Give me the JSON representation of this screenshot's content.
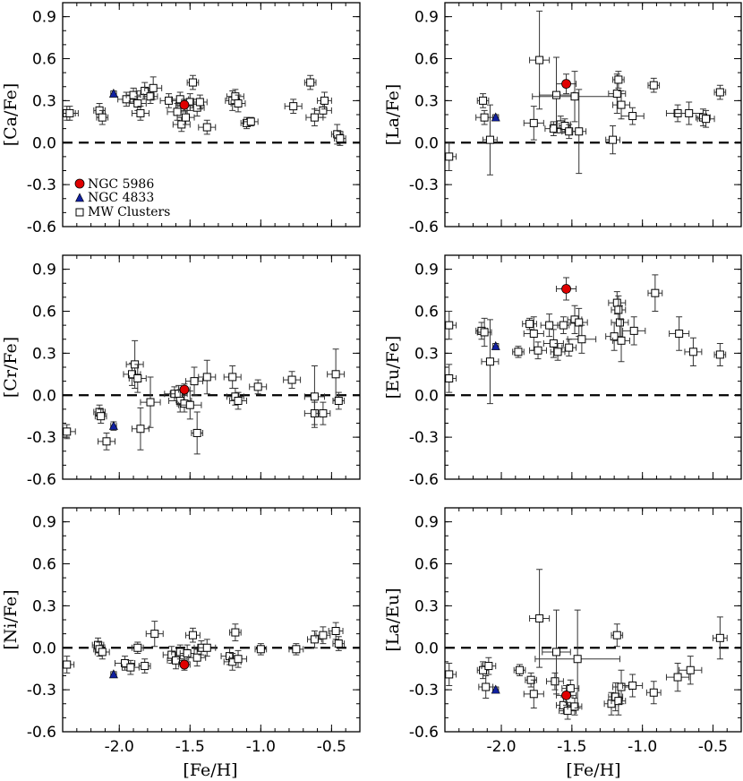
{
  "figure": {
    "xlabel": "[Fe/H]",
    "xticks": [
      "-2.0",
      "-1.5",
      "-1.0",
      "-0.5"
    ],
    "yticks": [
      "0.9",
      "0.6",
      "0.3",
      "0.0",
      "-0.3",
      "-0.6"
    ]
  },
  "legend": {
    "ngc5986": "NGC 5986",
    "ngc4833": "NGC 4833",
    "mw": "MW Clusters"
  },
  "colors": {
    "ngc5986": "#e00000",
    "ngc4833": "#1020a0"
  },
  "chart_data": [
    {
      "type": "scatter",
      "ylabel": "[Ca/Fe]",
      "xlim": [
        -2.4,
        -0.3
      ],
      "ylim": [
        -0.6,
        1.0
      ],
      "ngc5986": [
        -1.54,
        0.27,
        0.06,
        0.04
      ],
      "ngc4833": [
        -2.04,
        0.35,
        0.02,
        0.02
      ],
      "mw": [
        [
          -2.37,
          0.21,
          0.06,
          0.05
        ],
        [
          -2.35,
          0.21,
          0.06,
          0.05
        ],
        [
          -2.14,
          0.23,
          0.04,
          0.05
        ],
        [
          -2.12,
          0.18,
          0.04,
          0.05
        ],
        [
          -1.95,
          0.31,
          0.06,
          0.05
        ],
        [
          -1.9,
          0.34,
          0.05,
          0.05
        ],
        [
          -1.87,
          0.28,
          0.06,
          0.05
        ],
        [
          -1.85,
          0.21,
          0.06,
          0.05
        ],
        [
          -1.82,
          0.37,
          0.06,
          0.06
        ],
        [
          -1.78,
          0.33,
          0.05,
          0.05
        ],
        [
          -1.76,
          0.39,
          0.06,
          0.08
        ],
        [
          -1.65,
          0.3,
          0.06,
          0.05
        ],
        [
          -1.59,
          0.22,
          0.07,
          0.06
        ],
        [
          -1.57,
          0.31,
          0.06,
          0.05
        ],
        [
          -1.56,
          0.13,
          0.06,
          0.05
        ],
        [
          -1.53,
          0.18,
          0.06,
          0.05
        ],
        [
          -1.5,
          0.29,
          0.06,
          0.06
        ],
        [
          -1.48,
          0.43,
          0.04,
          0.05
        ],
        [
          -1.45,
          0.25,
          0.05,
          0.06
        ],
        [
          -1.43,
          0.29,
          0.05,
          0.05
        ],
        [
          -1.38,
          0.11,
          0.06,
          0.05
        ],
        [
          -1.2,
          0.3,
          0.05,
          0.07
        ],
        [
          -1.18,
          0.33,
          0.06,
          0.05
        ],
        [
          -1.16,
          0.28,
          0.05,
          0.06
        ],
        [
          -1.1,
          0.14,
          0.04,
          0.04
        ],
        [
          -1.07,
          0.15,
          0.05,
          0.03
        ],
        [
          -0.77,
          0.26,
          0.06,
          0.05
        ],
        [
          -0.65,
          0.43,
          0.04,
          0.05
        ],
        [
          -0.62,
          0.18,
          0.06,
          0.06
        ],
        [
          -0.56,
          0.23,
          0.06,
          0.05
        ],
        [
          -0.55,
          0.3,
          0.05,
          0.06
        ],
        [
          -0.46,
          0.06,
          0.04,
          0.07
        ],
        [
          -0.44,
          0.03,
          0.04,
          0.05
        ]
      ]
    },
    {
      "type": "scatter",
      "ylabel": "[La/Fe]",
      "xlim": [
        -2.4,
        -0.3
      ],
      "ylim": [
        -0.6,
        1.0
      ],
      "ngc5986": [
        -1.54,
        0.42,
        0.07,
        0.07
      ],
      "ngc4833": [
        -2.04,
        0.18,
        0.02,
        0.02
      ],
      "mw": [
        [
          -2.37,
          -0.1,
          0.05,
          0.1
        ],
        [
          -2.13,
          0.3,
          0.04,
          0.05
        ],
        [
          -2.12,
          0.18,
          0.06,
          0.05
        ],
        [
          -2.08,
          0.02,
          0.05,
          0.25
        ],
        [
          -1.77,
          0.14,
          0.07,
          0.12
        ],
        [
          -1.73,
          0.59,
          0.07,
          0.35
        ],
        [
          -1.63,
          0.1,
          0.06,
          0.05
        ],
        [
          -1.61,
          0.34,
          0.12,
          0.27
        ],
        [
          -1.58,
          0.13,
          0.07,
          0.06
        ],
        [
          -1.55,
          0.12,
          0.04,
          0.05
        ],
        [
          -1.52,
          0.08,
          0.05,
          0.05
        ],
        [
          -1.48,
          0.33,
          0.3,
          0.18
        ],
        [
          -1.45,
          0.08,
          0.05,
          0.3
        ],
        [
          -1.21,
          0.02,
          0.05,
          0.1
        ],
        [
          -1.18,
          0.35,
          0.06,
          0.14
        ],
        [
          -1.17,
          0.45,
          0.04,
          0.06
        ],
        [
          -1.15,
          0.27,
          0.06,
          0.1
        ],
        [
          -1.07,
          0.19,
          0.08,
          0.06
        ],
        [
          -0.92,
          0.41,
          0.04,
          0.05
        ],
        [
          -0.75,
          0.21,
          0.08,
          0.06
        ],
        [
          -0.67,
          0.21,
          0.1,
          0.08
        ],
        [
          -0.57,
          0.18,
          0.05,
          0.06
        ],
        [
          -0.55,
          0.17,
          0.06,
          0.06
        ],
        [
          -0.45,
          0.36,
          0.04,
          0.05
        ]
      ]
    },
    {
      "type": "scatter",
      "ylabel": "[Cr/Fe]",
      "xlim": [
        -2.4,
        -0.3
      ],
      "ylim": [
        -0.6,
        1.0
      ],
      "ngc5986": [
        -1.54,
        0.04,
        0.04,
        0.04
      ],
      "ngc4833": [
        -2.04,
        -0.22,
        0.02,
        0.03
      ],
      "mw": [
        [
          -2.37,
          -0.26,
          0.06,
          0.05
        ],
        [
          -2.14,
          -0.12,
          0.04,
          0.05
        ],
        [
          -2.13,
          -0.15,
          0.04,
          0.05
        ],
        [
          -2.09,
          -0.33,
          0.06,
          0.06
        ],
        [
          -1.91,
          0.15,
          0.06,
          0.08
        ],
        [
          -1.89,
          0.22,
          0.06,
          0.17
        ],
        [
          -1.87,
          0.12,
          0.06,
          0.1
        ],
        [
          -1.85,
          -0.24,
          0.06,
          0.15
        ],
        [
          -1.78,
          -0.05,
          0.07,
          0.18
        ],
        [
          -1.61,
          0.01,
          0.07,
          0.05
        ],
        [
          -1.58,
          0.01,
          0.06,
          0.06
        ],
        [
          -1.57,
          -0.04,
          0.08,
          0.08
        ],
        [
          -1.54,
          -0.06,
          0.05,
          0.06
        ],
        [
          -1.5,
          -0.07,
          0.08,
          0.1
        ],
        [
          -1.47,
          0.1,
          0.06,
          0.1
        ],
        [
          -1.45,
          -0.27,
          0.04,
          0.15
        ],
        [
          -1.38,
          0.13,
          0.06,
          0.12
        ],
        [
          -1.2,
          0.13,
          0.06,
          0.08
        ],
        [
          -1.18,
          -0.01,
          0.06,
          0.06
        ],
        [
          -1.16,
          -0.04,
          0.06,
          0.06
        ],
        [
          -1.02,
          0.06,
          0.06,
          0.05
        ],
        [
          -0.78,
          0.11,
          0.06,
          0.06
        ],
        [
          -0.62,
          -0.01,
          0.07,
          0.22
        ],
        [
          -0.62,
          -0.13,
          0.07,
          0.08
        ],
        [
          -0.56,
          -0.13,
          0.05,
          0.08
        ],
        [
          -0.47,
          0.15,
          0.06,
          0.18
        ],
        [
          -0.45,
          -0.04,
          0.04,
          0.06
        ]
      ]
    },
    {
      "type": "scatter",
      "ylabel": "[Eu/Fe]",
      "xlim": [
        -2.4,
        -0.3
      ],
      "ylim": [
        -0.6,
        1.0
      ],
      "ngc5986": [
        -1.54,
        0.76,
        0.07,
        0.08
      ],
      "ngc4833": [
        -2.04,
        0.35,
        0.02,
        0.02
      ],
      "mw": [
        [
          -2.37,
          0.5,
          0.05,
          0.1
        ],
        [
          -2.37,
          0.12,
          0.05,
          0.1
        ],
        [
          -2.14,
          0.46,
          0.04,
          0.06
        ],
        [
          -2.12,
          0.45,
          0.05,
          0.1
        ],
        [
          -2.08,
          0.24,
          0.06,
          0.3
        ],
        [
          -1.88,
          0.31,
          0.04,
          0.04
        ],
        [
          -1.8,
          0.51,
          0.05,
          0.04
        ],
        [
          -1.77,
          0.44,
          0.07,
          0.12
        ],
        [
          -1.74,
          0.32,
          0.06,
          0.06
        ],
        [
          -1.66,
          0.5,
          0.06,
          0.08
        ],
        [
          -1.63,
          0.37,
          0.07,
          0.1
        ],
        [
          -1.6,
          0.31,
          0.05,
          0.06
        ],
        [
          -1.56,
          0.5,
          0.04,
          0.06
        ],
        [
          -1.52,
          0.34,
          0.05,
          0.06
        ],
        [
          -1.48,
          0.54,
          0.05,
          0.1
        ],
        [
          -1.45,
          0.52,
          0.06,
          0.1
        ],
        [
          -1.43,
          0.4,
          0.1,
          0.1
        ],
        [
          -1.2,
          0.42,
          0.06,
          0.1
        ],
        [
          -1.18,
          0.66,
          0.06,
          0.08
        ],
        [
          -1.17,
          0.61,
          0.05,
          0.1
        ],
        [
          -1.16,
          0.52,
          0.06,
          0.12
        ],
        [
          -1.15,
          0.39,
          0.06,
          0.15
        ],
        [
          -1.06,
          0.46,
          0.08,
          0.1
        ],
        [
          -0.91,
          0.73,
          0.05,
          0.13
        ],
        [
          -0.74,
          0.44,
          0.07,
          0.12
        ],
        [
          -0.64,
          0.31,
          0.06,
          0.1
        ],
        [
          -0.45,
          0.29,
          0.04,
          0.08
        ]
      ]
    },
    {
      "type": "scatter",
      "ylabel": "[Ni/Fe]",
      "xlim": [
        -2.4,
        -0.3
      ],
      "ylim": [
        -0.6,
        1.0
      ],
      "ngc5986": [
        -1.54,
        -0.12,
        0.04,
        0.04
      ],
      "ngc4833": [
        -2.04,
        -0.19,
        0.02,
        0.02
      ],
      "mw": [
        [
          -2.37,
          -0.12,
          0.05,
          0.06
        ],
        [
          -2.15,
          0.02,
          0.04,
          0.05
        ],
        [
          -2.14,
          -0.01,
          0.04,
          0.05
        ],
        [
          -2.12,
          -0.03,
          0.05,
          0.05
        ],
        [
          -1.96,
          -0.11,
          0.07,
          0.05
        ],
        [
          -1.92,
          -0.14,
          0.06,
          0.05
        ],
        [
          -1.87,
          0.0,
          0.04,
          0.04
        ],
        [
          -1.82,
          -0.13,
          0.04,
          0.05
        ],
        [
          -1.75,
          0.1,
          0.06,
          0.09
        ],
        [
          -1.63,
          -0.05,
          0.06,
          0.06
        ],
        [
          -1.6,
          -0.09,
          0.06,
          0.06
        ],
        [
          -1.57,
          -0.03,
          0.06,
          0.05
        ],
        [
          -1.52,
          -0.04,
          0.05,
          0.06
        ],
        [
          -1.48,
          0.09,
          0.05,
          0.05
        ],
        [
          -1.45,
          -0.07,
          0.06,
          0.06
        ],
        [
          -1.42,
          0.0,
          0.05,
          0.05
        ],
        [
          -1.38,
          0.0,
          0.06,
          0.06
        ],
        [
          -1.22,
          -0.06,
          0.06,
          0.06
        ],
        [
          -1.2,
          -0.1,
          0.06,
          0.06
        ],
        [
          -1.18,
          0.11,
          0.04,
          0.06
        ],
        [
          -1.16,
          -0.08,
          0.06,
          0.06
        ],
        [
          -1.0,
          -0.01,
          0.04,
          0.04
        ],
        [
          -0.75,
          -0.01,
          0.05,
          0.04
        ],
        [
          -0.62,
          0.06,
          0.05,
          0.06
        ],
        [
          -0.56,
          0.09,
          0.05,
          0.06
        ],
        [
          -0.47,
          0.12,
          0.05,
          0.06
        ],
        [
          -0.45,
          0.03,
          0.04,
          0.05
        ]
      ]
    },
    {
      "type": "scatter",
      "ylabel": "[La/Eu]",
      "xlim": [
        -2.4,
        -0.3
      ],
      "ylim": [
        -0.6,
        1.0
      ],
      "ngc5986": [
        -1.54,
        -0.34,
        0.07,
        0.07
      ],
      "ngc4833": [
        -2.04,
        -0.3,
        0.02,
        0.02
      ],
      "mw": [
        [
          -2.37,
          -0.19,
          0.05,
          0.08
        ],
        [
          -2.13,
          -0.16,
          0.04,
          0.06
        ],
        [
          -2.11,
          -0.28,
          0.05,
          0.08
        ],
        [
          -2.09,
          -0.13,
          0.05,
          0.06
        ],
        [
          -1.87,
          -0.16,
          0.04,
          0.04
        ],
        [
          -1.79,
          -0.23,
          0.04,
          0.05
        ],
        [
          -1.77,
          -0.33,
          0.07,
          0.1
        ],
        [
          -1.73,
          0.21,
          0.07,
          0.35
        ],
        [
          -1.62,
          -0.24,
          0.06,
          0.06
        ],
        [
          -1.61,
          -0.03,
          0.1,
          0.3
        ],
        [
          -1.56,
          -0.41,
          0.05,
          0.06
        ],
        [
          -1.53,
          -0.45,
          0.06,
          0.06
        ],
        [
          -1.51,
          -0.29,
          0.06,
          0.06
        ],
        [
          -1.48,
          -0.42,
          0.05,
          0.06
        ],
        [
          -1.46,
          -0.08,
          0.3,
          0.35
        ],
        [
          -1.22,
          -0.4,
          0.05,
          0.08
        ],
        [
          -1.19,
          -0.35,
          0.05,
          0.1
        ],
        [
          -1.18,
          0.09,
          0.04,
          0.08
        ],
        [
          -1.17,
          -0.38,
          0.05,
          0.1
        ],
        [
          -1.15,
          -0.28,
          0.06,
          0.12
        ],
        [
          -1.07,
          -0.27,
          0.07,
          0.08
        ],
        [
          -0.92,
          -0.32,
          0.05,
          0.08
        ],
        [
          -0.75,
          -0.21,
          0.08,
          0.1
        ],
        [
          -0.66,
          -0.16,
          0.08,
          0.1
        ],
        [
          -0.45,
          0.07,
          0.05,
          0.15
        ]
      ]
    }
  ]
}
